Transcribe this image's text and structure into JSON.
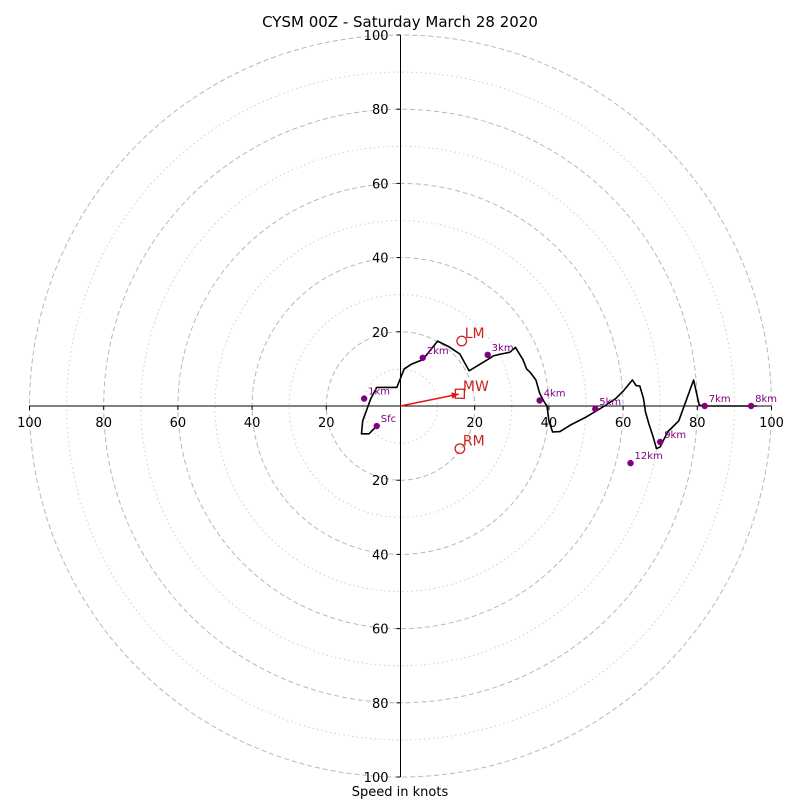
{
  "chart_data": {
    "type": "hodograph",
    "title": "CYSM 00Z - Saturday March 28 2020",
    "xlabel": "Speed in knots",
    "xlim": [
      -100,
      100
    ],
    "ylim": [
      -100,
      100
    ],
    "ring_step": 10,
    "x_ticks": [
      {
        "value": -100,
        "label": "100"
      },
      {
        "value": -80,
        "label": "80"
      },
      {
        "value": -60,
        "label": "60"
      },
      {
        "value": -40,
        "label": "40"
      },
      {
        "value": -20,
        "label": "20"
      },
      {
        "value": 20,
        "label": "20"
      },
      {
        "value": 40,
        "label": "40"
      },
      {
        "value": 60,
        "label": "60"
      },
      {
        "value": 80,
        "label": "80"
      },
      {
        "value": 100,
        "label": "100"
      }
    ],
    "y_ticks": [
      {
        "value": 100,
        "label": "100"
      },
      {
        "value": 80,
        "label": "80"
      },
      {
        "value": 60,
        "label": "60"
      },
      {
        "value": 40,
        "label": "40"
      },
      {
        "value": 20,
        "label": "20"
      },
      {
        "value": -20,
        "label": "20"
      },
      {
        "value": -40,
        "label": "40"
      },
      {
        "value": -60,
        "label": "60"
      },
      {
        "value": -80,
        "label": "80"
      },
      {
        "value": -100,
        "label": "100"
      }
    ],
    "wind_profile": {
      "u": [
        -6.4,
        -8.5,
        -10.5,
        -10.2,
        -8,
        -6.4,
        -4.5,
        -1,
        1,
        3,
        6,
        8,
        10,
        13,
        16,
        18.5,
        21,
        23.5,
        25,
        27,
        29.5,
        31,
        33,
        34,
        35,
        36.5,
        37.5,
        38.5,
        39.5,
        40,
        41,
        43,
        46,
        50,
        52.5,
        55,
        58,
        60,
        62.5,
        63.5,
        64.5,
        65.5,
        66,
        67,
        68,
        69,
        70,
        72,
        75,
        79,
        80.5,
        81.5,
        82,
        85,
        88,
        91,
        94.5,
        96
      ],
      "v": [
        -5.4,
        -7.5,
        -7.5,
        -4,
        2,
        5,
        5,
        5,
        10,
        11.3,
        12.5,
        15,
        17.5,
        16,
        14,
        9.5,
        11,
        12.5,
        13.5,
        14,
        14.5,
        15.8,
        12.5,
        10,
        9,
        7,
        3.5,
        1.5,
        0,
        -4,
        -7,
        -6.9,
        -5,
        -3,
        -1.5,
        0,
        2,
        4,
        7,
        5.5,
        5.4,
        2,
        -1.5,
        -5,
        -8,
        -11.5,
        -11,
        -7,
        -4,
        7,
        0.3,
        0,
        0,
        0,
        0,
        0,
        0,
        0
      ]
    },
    "heights": [
      {
        "label": "Sfc",
        "u": -6.4,
        "v": -5.4
      },
      {
        "label": "1km",
        "u": -9.8,
        "v": 2
      },
      {
        "label": "2km",
        "u": 6,
        "v": 13
      },
      {
        "label": "3km",
        "u": 23.5,
        "v": 13.8
      },
      {
        "label": "4km",
        "u": 37.5,
        "v": 1.5
      },
      {
        "label": "5km",
        "u": 52.5,
        "v": -0.8
      },
      {
        "label": "7km",
        "u": 82,
        "v": 0
      },
      {
        "label": "8km",
        "u": 94.5,
        "v": 0
      },
      {
        "label": "9km",
        "u": 70,
        "v": -9.7
      },
      {
        "label": "12km",
        "u": 62,
        "v": -15.4
      }
    ],
    "storm_motion": [
      {
        "label": "LM",
        "u": 16.5,
        "v": 17.5,
        "marker": "circle"
      },
      {
        "label": "MW",
        "u": 16,
        "v": 3.3,
        "marker": "square"
      },
      {
        "label": "RM",
        "u": 16,
        "v": -11.5,
        "marker": "circle"
      }
    ],
    "mean_wind_vector": {
      "u": 15.7,
      "v": 3.2
    },
    "colors": {
      "profile": "#000000",
      "height_markers": "#800080",
      "storm_motion": "#cc2222",
      "arrow": "#ee1111",
      "grid": "#b0b0b0"
    }
  }
}
